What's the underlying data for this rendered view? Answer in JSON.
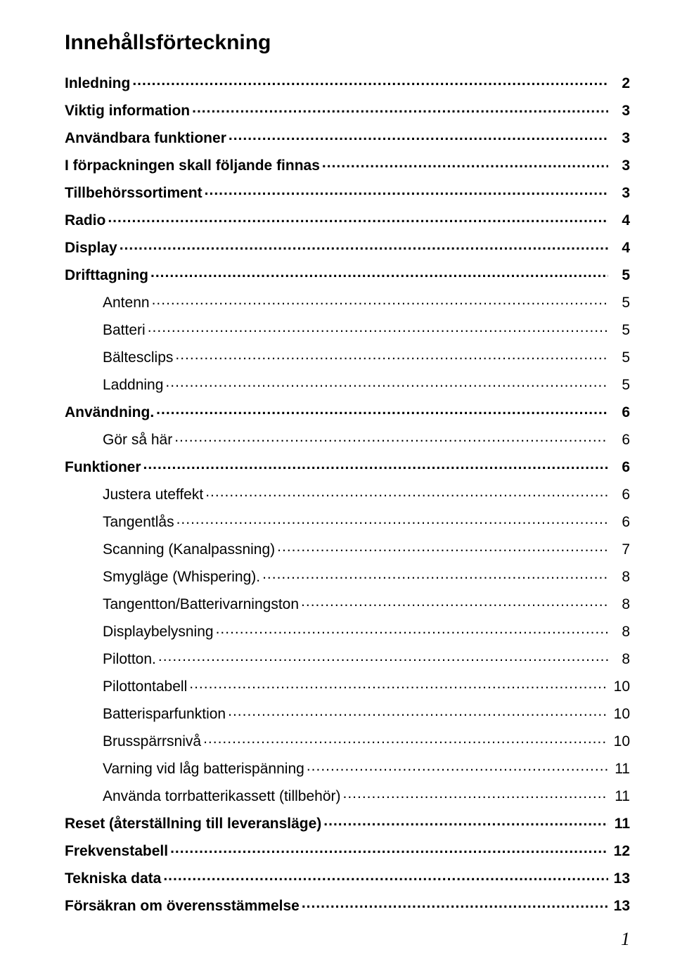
{
  "title": "Innehållsförteckning",
  "page_number": "1",
  "entries": [
    {
      "label": "Inledning",
      "page": "2",
      "level": 0,
      "bold": true
    },
    {
      "label": "Viktig information",
      "page": "3",
      "level": 0,
      "bold": true
    },
    {
      "label": "Användbara funktioner",
      "page": "3",
      "level": 0,
      "bold": true
    },
    {
      "label": "I förpackningen skall följande finnas",
      "page": "3",
      "level": 0,
      "bold": true
    },
    {
      "label": "Tillbehörssortiment",
      "page": "3",
      "level": 0,
      "bold": true
    },
    {
      "label": "Radio",
      "page": "4",
      "level": 0,
      "bold": true
    },
    {
      "label": "Display",
      "page": "4",
      "level": 0,
      "bold": true
    },
    {
      "label": "Drifttagning",
      "page": "5",
      "level": 0,
      "bold": true
    },
    {
      "label": "Antenn",
      "page": "5",
      "level": 1,
      "bold": false
    },
    {
      "label": "Batteri",
      "page": "5",
      "level": 1,
      "bold": false
    },
    {
      "label": "Bältesclips",
      "page": "5",
      "level": 1,
      "bold": false
    },
    {
      "label": "Laddning",
      "page": "5",
      "level": 1,
      "bold": false
    },
    {
      "label": "Användning. ",
      "page": "6",
      "level": 0,
      "bold": true
    },
    {
      "label": "Gör så här",
      "page": "6",
      "level": 1,
      "bold": false
    },
    {
      "label": "Funktioner",
      "page": "6",
      "level": 0,
      "bold": true
    },
    {
      "label": "Justera uteffekt",
      "page": "6",
      "level": 1,
      "bold": false
    },
    {
      "label": "Tangentlås",
      "page": "6",
      "level": 1,
      "bold": false
    },
    {
      "label": "Scanning (Kanalpassning)",
      "page": "7",
      "level": 1,
      "bold": false
    },
    {
      "label": "Smygläge (Whispering). ",
      "page": "8",
      "level": 1,
      "bold": false
    },
    {
      "label": "Tangentton/Batterivarningston",
      "page": "8",
      "level": 1,
      "bold": false
    },
    {
      "label": "Displaybelysning",
      "page": "8",
      "level": 1,
      "bold": false
    },
    {
      "label": "Pilotton. ",
      "page": "8",
      "level": 1,
      "bold": false
    },
    {
      "label": "Pilottontabell",
      "page": "10",
      "level": 1,
      "bold": false
    },
    {
      "label": "Batterisparfunktion",
      "page": "10",
      "level": 1,
      "bold": false
    },
    {
      "label": "Brusspärrsnivå",
      "page": "10",
      "level": 1,
      "bold": false
    },
    {
      "label": "Varning vid låg batterispänning",
      "page": "11",
      "level": 1,
      "bold": false
    },
    {
      "label": "Använda torrbatterikassett (tillbehör)",
      "page": "11",
      "level": 1,
      "bold": false
    },
    {
      "label": "Reset (återställning till leveransläge)",
      "page": "11",
      "level": 0,
      "bold": true
    },
    {
      "label": "Frekvenstabell",
      "page": "12",
      "level": 0,
      "bold": true
    },
    {
      "label": "Tekniska data",
      "page": "13",
      "level": 0,
      "bold": true
    },
    {
      "label": "Försäkran om överensstämmelse",
      "page": "13",
      "level": 0,
      "bold": true
    }
  ]
}
